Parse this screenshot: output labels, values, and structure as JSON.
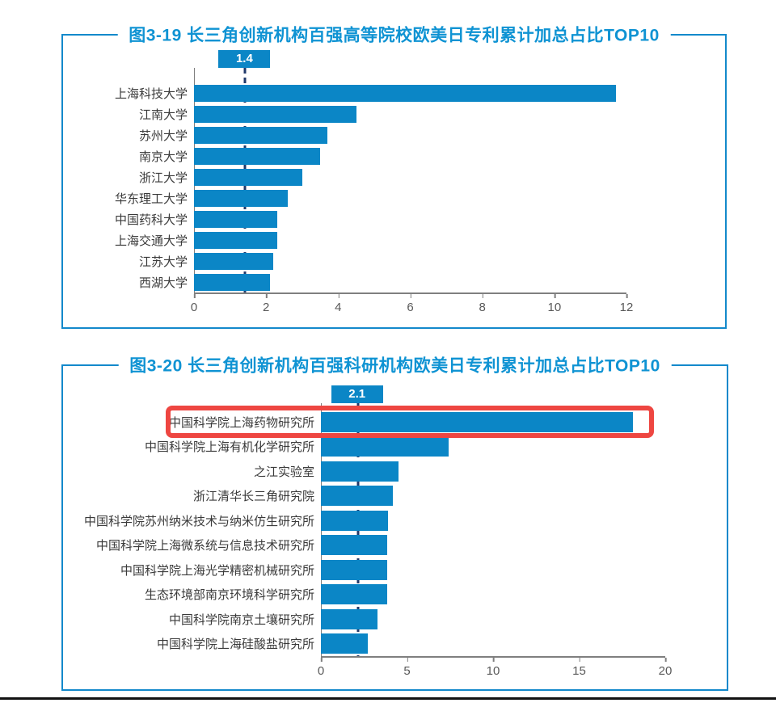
{
  "chart_data": [
    {
      "type": "bar",
      "orientation": "horizontal",
      "title": "图3-19  长三角创新机构百强高等院校欧美日专利累计加总占比TOP10",
      "categories": [
        "上海科技大学",
        "江南大学",
        "苏州大学",
        "南京大学",
        "浙江大学",
        "华东理工大学",
        "中国药科大学",
        "上海交通大学",
        "江苏大学",
        "西湖大学"
      ],
      "values": [
        11.7,
        4.5,
        3.7,
        3.5,
        3.0,
        2.6,
        2.3,
        2.3,
        2.2,
        2.1
      ],
      "xlim": [
        0,
        12
      ],
      "xticks": [
        0,
        2,
        4,
        6,
        8,
        10,
        12
      ],
      "xlabel": "",
      "ylabel": "",
      "grid": "off",
      "legend": "none",
      "reference_line": {
        "value": 1.4,
        "label": "1.4"
      },
      "highlight_index": null
    },
    {
      "type": "bar",
      "orientation": "horizontal",
      "title": "图3-20  长三角创新机构百强科研机构欧美日专利累计加总占比TOP10",
      "categories": [
        "中国科学院上海药物研究所",
        "中国科学院上海有机化学研究所",
        "之江实验室",
        "浙江清华长三角研究院",
        "中国科学院苏州纳米技术与纳米仿生研究所",
        "中国科学院上海微系统与信息技术研究所",
        "中国科学院上海光学精密机械研究所",
        "生态环境部南京环境科学研究所",
        "中国科学院南京土壤研究所",
        "中国科学院上海硅酸盐研究所"
      ],
      "values": [
        18.1,
        7.4,
        4.5,
        4.2,
        3.9,
        3.85,
        3.85,
        3.85,
        3.3,
        2.7
      ],
      "xlim": [
        0,
        20
      ],
      "xticks": [
        0,
        5,
        10,
        15,
        20
      ],
      "xlabel": "",
      "ylabel": "",
      "grid": "off",
      "legend": "none",
      "reference_line": {
        "value": 2.1,
        "label": "2.1"
      },
      "highlight_index": 0
    }
  ],
  "colors": {
    "bar": "#0b86c6",
    "title": "#0f93d3",
    "box_border": "#1389cb",
    "badge_bg": "#0b86c6",
    "badge_text": "#ffffff",
    "dash": "#203a6b",
    "highlight": "#ee4641",
    "axis": "#7f7f7f",
    "tick_text": "#595959",
    "label_text": "#3a3a3a",
    "footer": "#121212"
  }
}
